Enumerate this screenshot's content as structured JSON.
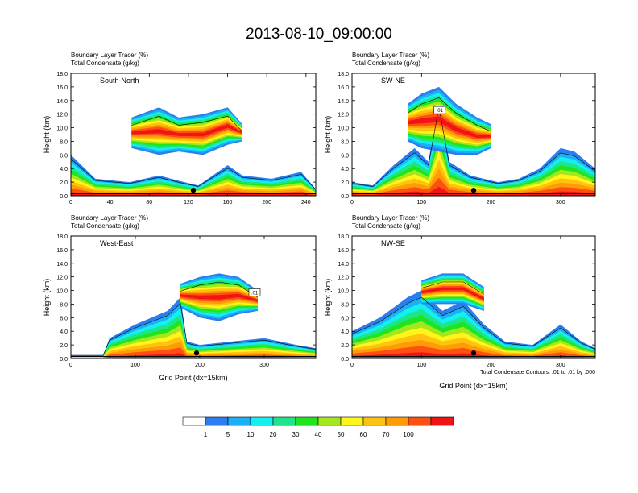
{
  "title": "2013-08-10_09:00:00",
  "colors": {
    "levels": [
      "#ffffff",
      "#2b7df0",
      "#1ab0f5",
      "#14f0f0",
      "#1ee58c",
      "#1ee61e",
      "#a5e61e",
      "#fff519",
      "#ffc30f",
      "#ff9b05",
      "#ff5014",
      "#f01414"
    ],
    "contour": "#000000",
    "frame": "#000000"
  },
  "colorbar": {
    "labels": [
      "1",
      "5",
      "10",
      "20",
      "30",
      "40",
      "50",
      "60",
      "70",
      "100"
    ]
  },
  "contour_note": "Total Condensate Contours: .01 to .01 by .000",
  "chart_data": [
    {
      "type": "heatmap",
      "panel_label": "South-North",
      "subtitle1": "Boundary Layer Tracer    (%)",
      "subtitle2": "Total Condensate    (g/kg)",
      "xlabel": "",
      "ylabel": "Height (km)",
      "xlim": [
        0,
        250
      ],
      "xticks": [
        "0",
        "40",
        "80",
        "120",
        "160",
        "200",
        "240"
      ],
      "ylim": [
        0,
        18
      ],
      "yticks": [
        "0.0",
        "2.0",
        "4.0",
        "6.0",
        "8.0",
        "10.0",
        "12.0",
        "14.0",
        "16.0",
        "18.0"
      ],
      "marker_x": 125,
      "cross_section_annotation": "",
      "bands": [
        {
          "x": [
            0,
            25,
            60,
            90,
            110,
            130,
            160,
            175,
            205,
            235,
            250
          ],
          "top": [
            6.0,
            2.5,
            2.0,
            3.0,
            2.2,
            1.5,
            4.5,
            3.0,
            2.5,
            3.5,
            1.0
          ]
        },
        {
          "x": [
            62,
            90,
            110,
            135,
            160,
            175
          ],
          "bottom": [
            7.0,
            6.0,
            6.5,
            6.0,
            7.5,
            8.0
          ],
          "top": [
            11.5,
            13.0,
            11.5,
            12.0,
            13.0,
            10.5
          ]
        }
      ]
    },
    {
      "type": "heatmap",
      "panel_label": "SW-NE",
      "subtitle1": "Boundary Layer Tracer    (%)",
      "subtitle2": "Total Condensate    (g/kg)",
      "xlabel": "",
      "ylabel": "Height (km)",
      "xlim": [
        0,
        350
      ],
      "xticks": [
        "0",
        "100",
        "200",
        "300"
      ],
      "ylim": [
        0,
        18
      ],
      "yticks": [
        "0.0",
        "2.0",
        "4.0",
        "6.0",
        "8.0",
        "10.0",
        "12.0",
        "14.0",
        "16.0",
        "18.0"
      ],
      "marker_x": 175,
      "cross_section_annotation": ".01",
      "bands": [
        {
          "x": [
            0,
            30,
            60,
            90,
            110,
            125,
            140,
            170,
            210,
            240,
            270,
            300,
            320,
            350
          ],
          "top": [
            2.0,
            1.5,
            4.5,
            7.0,
            5.0,
            14.5,
            5.0,
            3.0,
            2.0,
            2.5,
            4.0,
            7.0,
            6.5,
            4.0
          ]
        },
        {
          "x": [
            80,
            100,
            125,
            150,
            180,
            200
          ],
          "bottom": [
            8.0,
            7.0,
            6.5,
            6.0,
            6.0,
            7.0
          ],
          "top": [
            13.5,
            15.0,
            16.0,
            13.5,
            11.5,
            10.5
          ]
        }
      ]
    },
    {
      "type": "heatmap",
      "panel_label": "West-East",
      "subtitle1": "Boundary Layer Tracer    (%)",
      "subtitle2": "Total Condensate    (g/kg)",
      "xlabel": "Grid Point (dx=15km)",
      "ylabel": "Height (km)",
      "xlim": [
        0,
        380
      ],
      "xticks": [
        "0",
        "100",
        "200",
        "300"
      ],
      "ylim": [
        0,
        18
      ],
      "yticks": [
        "0.0",
        "2.0",
        "4.0",
        "6.0",
        "8.0",
        "10.0",
        "12.0",
        "14.0",
        "16.0",
        "18.0"
      ],
      "marker_x": 195,
      "cross_section_annotation": ".01",
      "bands": [
        {
          "x": [
            0,
            50,
            60,
            100,
            150,
            170,
            180,
            200,
            250,
            300,
            350,
            380
          ],
          "top": [
            0.5,
            0.5,
            3.0,
            5.0,
            7.0,
            9.0,
            2.5,
            2.0,
            2.5,
            3.0,
            2.0,
            1.5
          ]
        },
        {
          "x": [
            170,
            200,
            230,
            260,
            290
          ],
          "bottom": [
            7.5,
            6.0,
            5.5,
            6.5,
            7.0
          ],
          "top": [
            11.0,
            12.0,
            12.5,
            12.0,
            10.0
          ]
        }
      ]
    },
    {
      "type": "heatmap",
      "panel_label": "NW-SE",
      "subtitle1": "Boundary Layer Tracer    (%)",
      "subtitle2": "Total Condensate    (g/kg)",
      "xlabel": "Grid Point (dx=15km)",
      "ylabel": "Height (km)",
      "xlim": [
        0,
        350
      ],
      "xticks": [
        "0",
        "100",
        "200",
        "300"
      ],
      "ylim": [
        0,
        18
      ],
      "yticks": [
        "0.0",
        "2.0",
        "4.0",
        "6.0",
        "8.0",
        "10.0",
        "12.0",
        "14.0",
        "16.0",
        "18.0"
      ],
      "marker_x": 175,
      "cross_section_annotation": "",
      "bands": [
        {
          "x": [
            0,
            40,
            80,
            100,
            130,
            160,
            190,
            220,
            260,
            300,
            330,
            350
          ],
          "top": [
            4.0,
            6.0,
            9.0,
            10.0,
            7.0,
            8.5,
            5.0,
            2.5,
            2.0,
            5.0,
            2.5,
            1.5
          ]
        },
        {
          "x": [
            100,
            130,
            160,
            190
          ],
          "bottom": [
            8.0,
            8.0,
            8.0,
            7.0
          ],
          "top": [
            11.5,
            12.5,
            12.5,
            10.5
          ]
        }
      ]
    }
  ]
}
